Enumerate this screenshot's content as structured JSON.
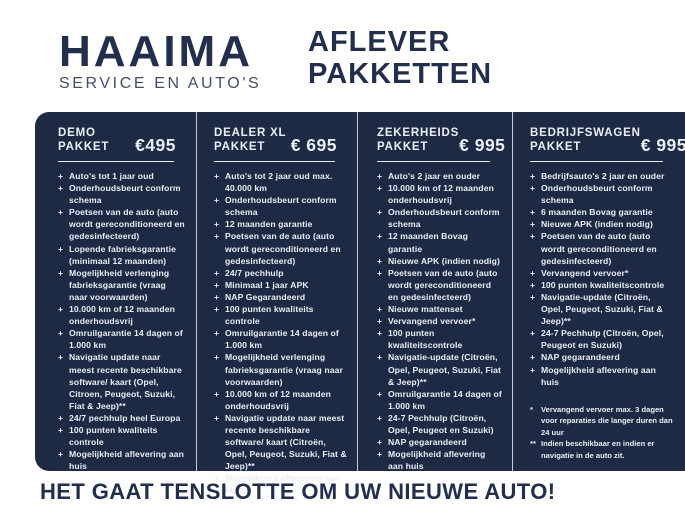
{
  "colors": {
    "panel": "#1e2a44",
    "brand_navy": "#222e4c",
    "panel_text": "#eaeef5",
    "page_background": "#ffffff"
  },
  "header": {
    "logo_name": "HAAIMA",
    "logo_tagline": "SERVICE EN AUTO'S",
    "title_line1": "AFLEVER",
    "title_line2": "PAKKETTEN"
  },
  "bullet_glyph": "+",
  "packages": [
    {
      "name_line1": "DEMO",
      "name_line2": "PAKKET",
      "price": "€495",
      "items": [
        "Auto's tot 1 jaar oud",
        "Onderhoudsbeurt conform schema",
        "Poetsen van de auto (auto wordt gereconditioneerd en gedesinfecteerd)",
        "Lopende fabrieksgarantie (minimaal 12 maanden)",
        "Mogelijkheid verlenging fabrieksgarantie (vraag naar voorwaarden)",
        "10.000 km of 12 maanden onderhoudsvrij",
        "Omruilgarantie 14 dagen of 1.000 km",
        "Navigatie update naar meest recente beschikbare software/ kaart (Opel, Citroen, Peugeot, Suzuki, Fiat & Jeep)**",
        "24/7 pechhulp heel Europa",
        "100 punten kwaliteits controle",
        "Mogelijkheid aflevering aan huis"
      ]
    },
    {
      "name_line1": "DEALER XL",
      "name_line2": "PAKKET",
      "price": "€ 695",
      "items": [
        "Auto's tot 2 jaar oud max. 40.000 km",
        "Onderhoudsbeurt conform schema",
        "12 maanden garantie",
        "Poetsen van de auto (auto wordt gereconditioneerd en gedesinfecteerd)",
        "24/7 pechhulp",
        "Minimaal 1 jaar APK",
        "NAP Gegarandeerd",
        "100 punten kwaliteits controle",
        "Omruilgarantie 14 dagen of 1.000 km",
        "Mogelijkheid verlenging fabrieksgarantie (vraag naar voorwaarden)",
        "10.000 km of 12 maanden onderhoudsvrij",
        "Navigatie update naar meest recente beschikbare software/ kaart (Citroën, Opel, Peugeot, Suzuki, Fiat & Jeep)**",
        "Mogelijkheid aflevering aan huis"
      ]
    },
    {
      "name_line1": "ZEKERHEIDS",
      "name_line2": "PAKKET",
      "price": "€ 995",
      "items": [
        "Auto's 2 jaar en ouder",
        "10.000 km of 12 maanden onderhoudsvrij",
        "Onderhoudsbeurt conform schema",
        "12 maanden Bovag garantie",
        "Nieuwe APK (indien nodig)",
        "Poetsen van de auto (auto wordt gereconditioneerd en gedesinfecteerd)",
        "Nieuwe mattenset",
        "Vervangend vervoer*",
        "100 punten kwaliteitscontrole",
        "Navigatie-update (Citroën, Opel, Peugeot, Suzuki, Fiat & Jeep)**",
        "Omruilgarantie 14 dagen of 1.000 km",
        "24-7 Pechhulp (Citroën, Opel, Peugeot en Suzuki)",
        "NAP gegarandeerd",
        "Mogelijkheid aflevering aan huis"
      ]
    },
    {
      "name_line1": "BEDRIJFSWAGEN",
      "name_line2": "PAKKET",
      "price": "€ 995",
      "items": [
        "Bedrijfsauto's 2 jaar en ouder",
        "Onderhoudsbeurt conform schema",
        "6 maanden Bovag garantie",
        "Nieuwe APK (indien nodig)",
        "Poetsen van de auto (auto wordt gereconditioneerd en gedesinfecteerd)",
        "Vervangend vervoer*",
        "100 punten kwaliteitscontrole",
        "Navigatie-update (Citroën, Opel, Peugeot, Suzuki, Fiat & Jeep)**",
        "24-7 Pechhulp (Citroën, Opel, Peugeot en Suzuki)",
        "NAP gegarandeerd",
        "Mogelijkheid aflevering aan huis"
      ]
    }
  ],
  "footnotes": [
    {
      "marker": "*",
      "text": "Vervangend vervoer max. 3 dagen voor reparaties die langer duren dan 24 uur"
    },
    {
      "marker": "**",
      "text": "Indien beschikbaar en indien er navigatie in de auto zit."
    }
  ],
  "slogan": "HET GAAT TENSLOTTE OM UW NIEUWE AUTO!"
}
